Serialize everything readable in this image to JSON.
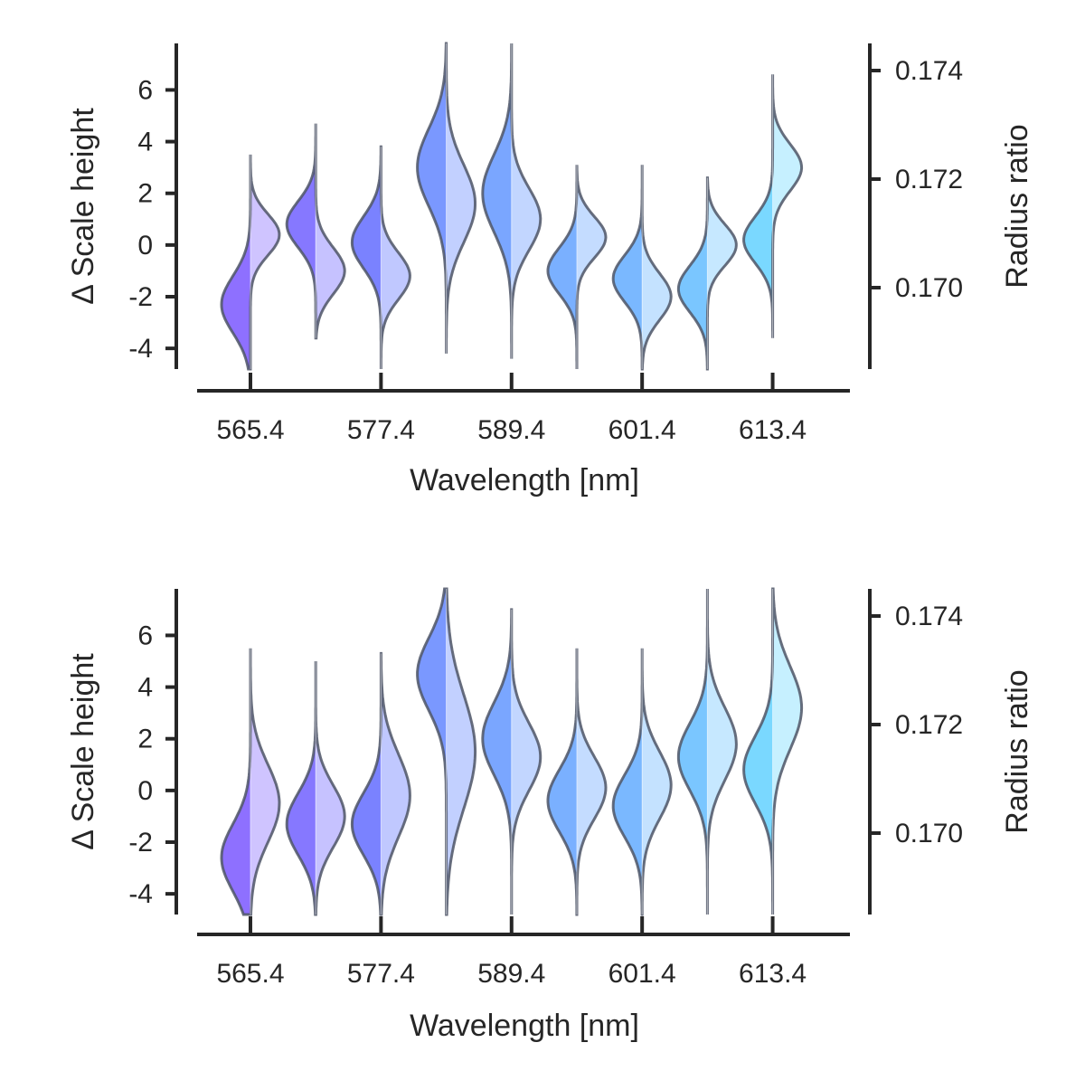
{
  "chart_data": [
    {
      "type": "violin",
      "panel": "top",
      "xlabel": "Wavelength [nm]",
      "ylabel_left": "Δ Scale height",
      "ylabel_right": "Radius ratio",
      "xtick_labels": [
        "565.4",
        "577.4",
        "589.4",
        "601.4",
        "613.4"
      ],
      "xtick_values": [
        565.4,
        577.4,
        589.4,
        601.4,
        613.4
      ],
      "x_range": [
        560.0,
        620.5
      ],
      "yticks_left": [
        -4,
        -2,
        0,
        2,
        4,
        6
      ],
      "ytick_labels_left": [
        "-4",
        "-2",
        "0",
        "2",
        "4",
        "6"
      ],
      "ylim_left": [
        -4.8,
        7.8
      ],
      "yticks_right": [
        0.17,
        0.172,
        0.174
      ],
      "ytick_labels_right": [
        "0.170",
        "0.172",
        "0.174"
      ],
      "ylim_right": [
        0.1685,
        0.1745
      ],
      "series": [
        {
          "x": 565.4,
          "left_mode": -2.3,
          "left_sd": 1.1,
          "right_mode": 0.4,
          "right_sd": 0.8,
          "ymin": -4.8,
          "ymax": 3.5
        },
        {
          "x": 571.4,
          "left_mode": 0.8,
          "left_sd": 0.9,
          "right_mode": -1.0,
          "right_sd": 0.9,
          "ymin": -3.6,
          "ymax": 4.7
        },
        {
          "x": 577.4,
          "left_mode": 0.1,
          "left_sd": 1.0,
          "right_mode": -1.2,
          "right_sd": 0.9,
          "ymin": -4.8,
          "ymax": 3.8
        },
        {
          "x": 583.4,
          "left_mode": 3.0,
          "left_sd": 1.5,
          "right_mode": 1.6,
          "right_sd": 1.5,
          "ymin": -4.2,
          "ymax": 7.8
        },
        {
          "x": 589.4,
          "left_mode": 2.0,
          "left_sd": 1.5,
          "right_mode": 1.0,
          "right_sd": 1.2,
          "ymin": -4.4,
          "ymax": 7.8
        },
        {
          "x": 595.4,
          "left_mode": -1.0,
          "left_sd": 0.9,
          "right_mode": 0.3,
          "right_sd": 0.8,
          "ymin": -4.8,
          "ymax": 3.1
        },
        {
          "x": 601.4,
          "left_mode": -1.3,
          "left_sd": 0.9,
          "right_mode": -2.0,
          "right_sd": 0.9,
          "ymin": -4.8,
          "ymax": 3.1
        },
        {
          "x": 607.4,
          "left_mode": -1.7,
          "left_sd": 0.9,
          "right_mode": 0.0,
          "right_sd": 0.8,
          "ymin": -4.8,
          "ymax": 2.6
        },
        {
          "x": 613.4,
          "left_mode": 0.2,
          "left_sd": 0.9,
          "right_mode": 3.0,
          "right_sd": 0.9,
          "ymin": -3.6,
          "ymax": 6.6
        }
      ]
    },
    {
      "type": "violin",
      "panel": "bottom",
      "xlabel": "Wavelength [nm]",
      "ylabel_left": "Δ Scale height",
      "ylabel_right": "Radius ratio",
      "xtick_labels": [
        "565.4",
        "577.4",
        "589.4",
        "601.4",
        "613.4"
      ],
      "xtick_values": [
        565.4,
        577.4,
        589.4,
        601.4,
        613.4
      ],
      "x_range": [
        560.0,
        620.5
      ],
      "yticks_left": [
        -4,
        -2,
        0,
        2,
        4,
        6
      ],
      "ytick_labels_left": [
        "-4",
        "-2",
        "0",
        "2",
        "4",
        "6"
      ],
      "ylim_left": [
        -4.8,
        7.8
      ],
      "yticks_right": [
        0.17,
        0.172,
        0.174
      ],
      "ytick_labels_right": [
        "0.170",
        "0.172",
        "0.174"
      ],
      "ylim_right": [
        0.1685,
        0.1745
      ],
      "series": [
        {
          "x": 565.4,
          "left_mode": -2.6,
          "left_sd": 1.3,
          "right_mode": -0.5,
          "right_sd": 1.5,
          "ymin": -4.8,
          "ymax": 5.5
        },
        {
          "x": 571.4,
          "left_mode": -1.3,
          "left_sd": 1.2,
          "right_mode": -1.0,
          "right_sd": 1.2,
          "ymin": -4.8,
          "ymax": 5.0
        },
        {
          "x": 577.4,
          "left_mode": -1.3,
          "left_sd": 1.2,
          "right_mode": -0.2,
          "right_sd": 1.6,
          "ymin": -4.8,
          "ymax": 5.3
        },
        {
          "x": 583.4,
          "left_mode": 4.5,
          "left_sd": 1.4,
          "right_mode": 1.5,
          "right_sd": 2.2,
          "ymin": -4.8,
          "ymax": 7.8
        },
        {
          "x": 589.4,
          "left_mode": 2.0,
          "left_sd": 1.4,
          "right_mode": 1.3,
          "right_sd": 1.3,
          "ymin": -4.8,
          "ymax": 7.0
        },
        {
          "x": 595.4,
          "left_mode": -0.4,
          "left_sd": 1.2,
          "right_mode": 0.1,
          "right_sd": 1.2,
          "ymin": -4.8,
          "ymax": 5.5
        },
        {
          "x": 601.4,
          "left_mode": -0.6,
          "left_sd": 1.2,
          "right_mode": 0.2,
          "right_sd": 1.3,
          "ymin": -4.8,
          "ymax": 5.5
        },
        {
          "x": 607.4,
          "left_mode": 1.3,
          "left_sd": 1.3,
          "right_mode": 1.8,
          "right_sd": 1.4,
          "ymin": -4.8,
          "ymax": 7.8
        },
        {
          "x": 613.4,
          "left_mode": 0.8,
          "left_sd": 1.3,
          "right_mode": 3.2,
          "right_sd": 1.6,
          "ymin": -4.8,
          "ymax": 7.8
        }
      ]
    }
  ],
  "colors": {
    "left_fills": [
      "#8e70ff",
      "#8678ff",
      "#7a82ff",
      "#7a98ff",
      "#7aa6ff",
      "#7ab0ff",
      "#7ab8ff",
      "#7ac6ff",
      "#7ad8ff"
    ],
    "right_fills": [
      "#cfc4ff",
      "#c6c2ff",
      "#c0c8ff",
      "#c2d0ff",
      "#c2d6ff",
      "#c4dcff",
      "#c4e2ff",
      "#c6e8ff",
      "#c6f0ff"
    ],
    "outline": "#4d5566",
    "axis": "#262626"
  }
}
